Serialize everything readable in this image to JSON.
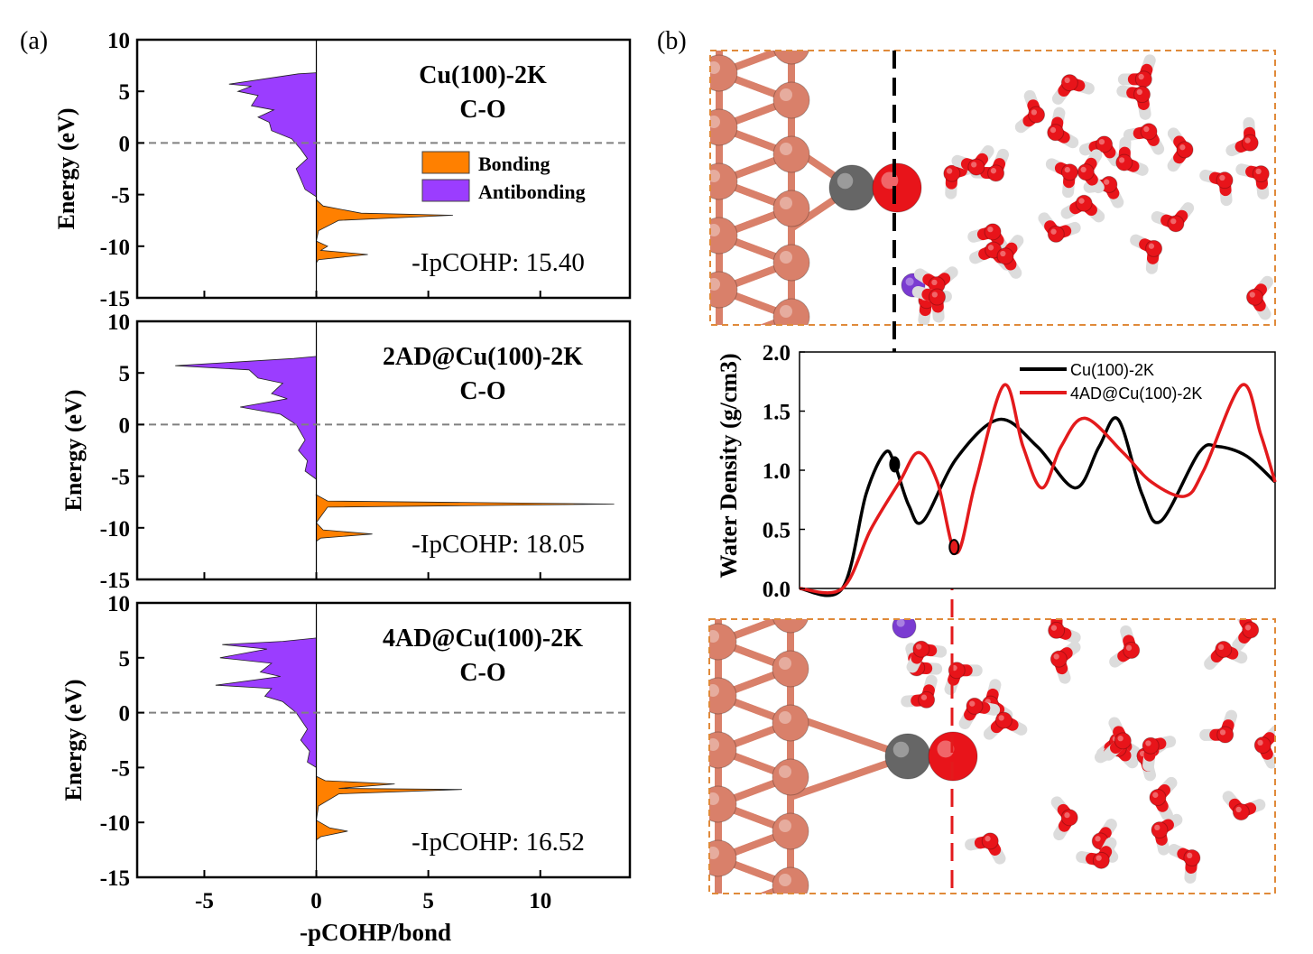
{
  "panel_labels": {
    "a": "(a)",
    "b": "(b)"
  },
  "colors": {
    "bonding": "#ff8000",
    "antibonding": "#9b3dff",
    "cu": "#d9806a",
    "c": "#666666",
    "o": "#e8141a",
    "h": "#f2f2f2",
    "k": "#7a3bd1",
    "frame": "#e08a3a",
    "series_black": "#000000",
    "series_red": "#e31a1c"
  },
  "chart_data": [
    {
      "type": "area",
      "title": "Cu(100)-2K",
      "subtitle": "C-O",
      "annotation": "-IpCOHP: 15.40",
      "xlabel": "-pCOHP/bond",
      "ylabel": "Energy (eV)",
      "xlim": [
        -8,
        14
      ],
      "ylim": [
        -15,
        10
      ],
      "xticks": [
        "-5",
        "0",
        "5",
        "10"
      ],
      "yticks": [
        "10",
        "5",
        "0",
        "-5",
        "-10",
        "-15"
      ],
      "fermi_level": 0,
      "legend": [
        "Bonding",
        "Antibonding"
      ],
      "legend_position": "right",
      "antibonding": [
        [
          0,
          6.8
        ],
        [
          -0.8,
          6.7
        ],
        [
          -3.9,
          5.7
        ],
        [
          -2.9,
          5.5
        ],
        [
          -3.5,
          5.0
        ],
        [
          -2.6,
          4.6
        ],
        [
          -2.9,
          3.6
        ],
        [
          -1.9,
          3.2
        ],
        [
          -2.6,
          2.5
        ],
        [
          -2.1,
          2.0
        ],
        [
          -2.0,
          1.2
        ],
        [
          -1.1,
          0.4
        ],
        [
          -0.7,
          -0.6
        ],
        [
          -0.4,
          -1.5
        ],
        [
          -0.9,
          -2.5
        ],
        [
          -0.7,
          -3.5
        ],
        [
          -0.5,
          -4.5
        ],
        [
          0,
          -5.2
        ]
      ],
      "bonding": [
        [
          0,
          -5.5
        ],
        [
          0.3,
          -6.1
        ],
        [
          2.0,
          -6.8
        ],
        [
          6.1,
          -7.0
        ],
        [
          1.0,
          -7.5
        ],
        [
          0.1,
          -8.5
        ],
        [
          0,
          -9.5
        ],
        [
          0.5,
          -10.0
        ],
        [
          0.2,
          -10.4
        ],
        [
          2.3,
          -10.8
        ],
        [
          0.1,
          -11.3
        ],
        [
          0,
          -11.6
        ]
      ]
    },
    {
      "type": "area",
      "title": "2AD@Cu(100)-2K",
      "subtitle": "C-O",
      "annotation": "-IpCOHP: 18.05",
      "ylabel": "Energy (eV)",
      "xlim": [
        -8,
        14
      ],
      "ylim": [
        -15,
        10
      ],
      "yticks": [
        "10",
        "5",
        "0",
        "-5",
        "-10",
        "-15"
      ],
      "fermi_level": 0,
      "antibonding": [
        [
          0,
          6.6
        ],
        [
          -1.0,
          6.4
        ],
        [
          -6.3,
          5.7
        ],
        [
          -3.0,
          5.3
        ],
        [
          -2.6,
          4.5
        ],
        [
          -1.5,
          4.0
        ],
        [
          -2.0,
          3.0
        ],
        [
          -1.3,
          2.5
        ],
        [
          -3.4,
          1.7
        ],
        [
          -1.6,
          1.0
        ],
        [
          -0.9,
          0.0
        ],
        [
          -0.5,
          -1.5
        ],
        [
          -0.8,
          -2.5
        ],
        [
          -0.4,
          -3.5
        ],
        [
          -0.5,
          -4.5
        ],
        [
          0,
          -5.3
        ]
      ],
      "bonding": [
        [
          0,
          -6.8
        ],
        [
          0.5,
          -7.4
        ],
        [
          13.3,
          -7.7
        ],
        [
          0.5,
          -8.0
        ],
        [
          0,
          -9.5
        ],
        [
          0.3,
          -10.2
        ],
        [
          2.5,
          -10.6
        ],
        [
          0.2,
          -11.0
        ],
        [
          0,
          -11.3
        ]
      ]
    },
    {
      "type": "area",
      "title": "4AD@Cu(100)-2K",
      "subtitle": "C-O",
      "annotation": "-IpCOHP: 16.52",
      "xlabel": "-pCOHP/bond",
      "ylabel": "Energy (eV)",
      "xlim": [
        -8,
        14
      ],
      "ylim": [
        -15,
        10
      ],
      "xticks": [
        "-5",
        "0",
        "5",
        "10"
      ],
      "yticks": [
        "10",
        "5",
        "0",
        "-5",
        "-10",
        "-15"
      ],
      "fermi_level": 0,
      "antibonding": [
        [
          0,
          6.8
        ],
        [
          -1.5,
          6.5
        ],
        [
          -4.2,
          6.2
        ],
        [
          -2.2,
          5.8
        ],
        [
          -4.3,
          5.0
        ],
        [
          -2.0,
          4.5
        ],
        [
          -2.5,
          3.7
        ],
        [
          -1.6,
          3.3
        ],
        [
          -4.5,
          2.5
        ],
        [
          -2.0,
          2.2
        ],
        [
          -2.3,
          1.5
        ],
        [
          -1.5,
          1.0
        ],
        [
          -0.9,
          0.0
        ],
        [
          -0.4,
          -1.5
        ],
        [
          -0.7,
          -2.5
        ],
        [
          -0.3,
          -3.5
        ],
        [
          -0.4,
          -4.5
        ],
        [
          0,
          -5.0
        ]
      ],
      "bonding": [
        [
          0,
          -5.8
        ],
        [
          0.4,
          -6.2
        ],
        [
          3.5,
          -6.5
        ],
        [
          1.0,
          -6.9
        ],
        [
          6.5,
          -7.0
        ],
        [
          1.0,
          -7.4
        ],
        [
          0.1,
          -8.5
        ],
        [
          0,
          -9.8
        ],
        [
          0.6,
          -10.5
        ],
        [
          1.4,
          -10.8
        ],
        [
          0.2,
          -11.3
        ],
        [
          0,
          -11.6
        ]
      ]
    },
    {
      "type": "line",
      "ylabel": "Water Density (g/cm3)",
      "ylim": [
        0,
        2.0
      ],
      "yticks": [
        "0.0",
        "0.5",
        "1.0",
        "1.5",
        "2.0"
      ],
      "legend_position": "top-right",
      "grid": false,
      "series": [
        {
          "name": "Cu(100)-2K",
          "x": [
            0,
            9,
            14,
            18,
            20,
            23,
            26,
            33,
            42,
            50,
            58,
            63,
            67,
            72,
            76,
            84,
            88,
            94,
            100
          ],
          "values": [
            0,
            0,
            0.8,
            1.15,
            1.05,
            0.7,
            0.57,
            1.1,
            1.43,
            1.2,
            0.85,
            1.2,
            1.43,
            0.8,
            0.57,
            1.15,
            1.2,
            1.12,
            0.9
          ]
        },
        {
          "name": "4AD@Cu(100)-2K",
          "x": [
            0,
            9,
            15,
            21,
            25,
            29,
            33,
            37,
            43,
            47,
            51,
            55,
            60,
            68,
            74,
            81,
            85,
            93,
            97,
            100
          ],
          "values": [
            0,
            0,
            0.5,
            0.9,
            1.15,
            0.9,
            0.3,
            0.9,
            1.72,
            1.2,
            0.85,
            1.2,
            1.44,
            1.15,
            0.9,
            0.78,
            1.0,
            1.72,
            1.3,
            0.9
          ]
        }
      ],
      "markers": [
        {
          "series": "Cu(100)-2K",
          "x": 20,
          "y": 1.05
        },
        {
          "series": "4AD@Cu(100)-2K",
          "x": 32.5,
          "y": 0.35
        }
      ]
    }
  ]
}
